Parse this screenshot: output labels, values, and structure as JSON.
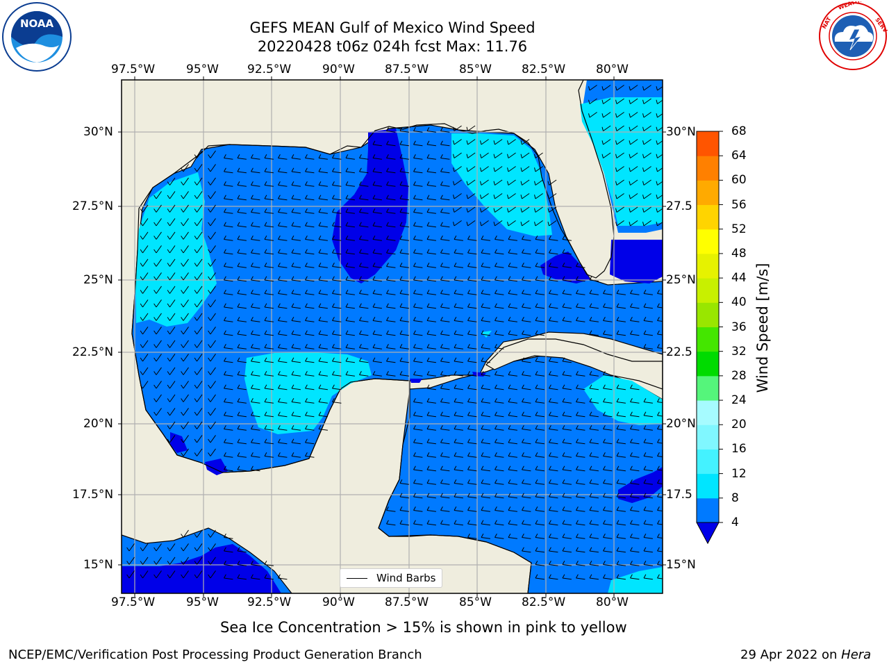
{
  "header": {
    "title_line1": "GEFS MEAN Gulf of Mexico Wind Speed",
    "title_line2": "20220428 t06z 024h fcst   Max: 11.76"
  },
  "logos": {
    "left": {
      "name": "NOAA",
      "ring_text": "NATIONAL OCEANIC AND ATMOSPHERIC ADMINISTRATION · U.S. DEPARTMENT OF COMMERCE",
      "colors": [
        "#0b3d91",
        "#1e90ff",
        "#ffffff"
      ]
    },
    "right": {
      "name": "NATIONAL WEATHER SERVICE",
      "colors": [
        "#e00000",
        "#1e5fb4",
        "#ffffff"
      ]
    }
  },
  "map": {
    "lon_ticks": [
      "97.5°W",
      "95°W",
      "92.5°W",
      "90°W",
      "87.5°W",
      "85°W",
      "82.5°W",
      "80°W"
    ],
    "lat_ticks_left": [
      "30°N",
      "27.5°N",
      "25°N",
      "22.5°N",
      "20°N",
      "17.5°N",
      "15°N"
    ],
    "lat_ticks_right": [
      "30°N",
      "27.5",
      "25°N",
      "22.5",
      "20°N",
      "17.5",
      "15°N"
    ],
    "land_color": "#efedde",
    "grid_color": "#b0b0b0",
    "legend_label": "Wind Barbs"
  },
  "colorbar": {
    "label": "Wind Speed [m/s]",
    "ticks": [
      "68",
      "64",
      "60",
      "56",
      "52",
      "48",
      "44",
      "40",
      "36",
      "32",
      "28",
      "24",
      "20",
      "16",
      "12",
      "8",
      "4"
    ],
    "colors_bottom_to_top": [
      "#0000e8",
      "#007aff",
      "#00e5ff",
      "#44f2ff",
      "#80f7ff",
      "#a6fbff",
      "#55f57b",
      "#00db00",
      "#44e600",
      "#99e600",
      "#c8f000",
      "#e6f200",
      "#ffff00",
      "#ffd400",
      "#ffaa00",
      "#ff8000",
      "#ff5500",
      "#ff2a00",
      "#ff0000"
    ],
    "extend_color": "#0000e8"
  },
  "caption": "Sea Ice Concentration > 15% is shown in pink to yellow",
  "footer": {
    "left": "NCEP/EMC/Verification Post Processing Product Generation Branch",
    "right_date": "29 Apr 2022 on ",
    "right_host": "Hera"
  }
}
